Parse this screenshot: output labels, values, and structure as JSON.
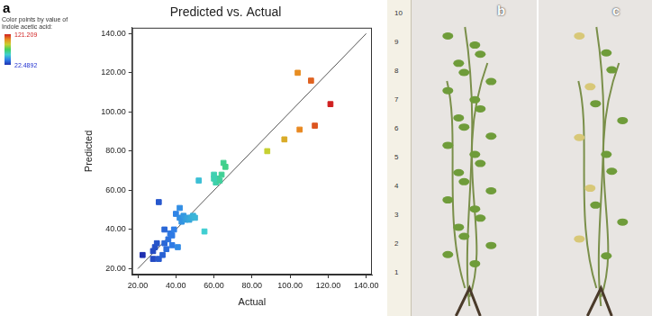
{
  "chart_data": {
    "type": "scatter",
    "panel": "a",
    "title": "Predicted vs. Actual",
    "x_label": "Actual",
    "y_label": "Predicted",
    "marker": "square",
    "grid": false,
    "colorbar": {
      "title": [
        "Color points by value of",
        "Indole acetic acid:"
      ],
      "min": 22.4892,
      "max": 121.209,
      "colors": [
        "#1f2fb0",
        "#2f7fe8",
        "#3fd0d0",
        "#40d060",
        "#c8d030",
        "#e88a20",
        "#d02020"
      ]
    },
    "x": [
      22.4892,
      28,
      28,
      29,
      30,
      31,
      31,
      33,
      34,
      34,
      35,
      36,
      37,
      38,
      39,
      38,
      40,
      41,
      42,
      42,
      43,
      44,
      45,
      46,
      47,
      48,
      49,
      50,
      52,
      55,
      60,
      61,
      62,
      63,
      64,
      65,
      66,
      60,
      88,
      97,
      105,
      104,
      111,
      113,
      121.209
    ],
    "values": [
      27,
      29,
      25,
      31,
      33,
      25,
      54,
      27,
      33,
      40,
      30,
      35,
      38,
      37,
      40,
      32,
      48,
      31,
      51,
      46,
      44,
      47,
      45,
      46,
      45,
      46,
      47,
      46,
      65,
      39,
      68,
      64,
      66,
      65,
      68,
      74,
      72,
      66,
      80,
      86,
      91,
      120,
      116,
      93,
      104
    ],
    "reference_line": {
      "x": [
        20,
        140
      ],
      "values": [
        20,
        140
      ]
    },
    "xlim": [
      17,
      143
    ],
    "ylim": [
      17,
      143
    ],
    "xticks": [
      {
        "value": 20,
        "label": "20.00"
      },
      {
        "value": 40,
        "label": "40.00"
      },
      {
        "value": 60,
        "label": "60.00"
      },
      {
        "value": 80,
        "label": "80.00"
      },
      {
        "value": 100,
        "label": "100.00"
      },
      {
        "value": 120,
        "label": "120.00"
      },
      {
        "value": 140,
        "label": "140.00"
      }
    ],
    "yticks": [
      {
        "value": 20,
        "label": "20.00"
      },
      {
        "value": 40,
        "label": "40.00"
      },
      {
        "value": 60,
        "label": "60.00"
      },
      {
        "value": 80,
        "label": "80.00"
      },
      {
        "value": 100,
        "label": "100.00"
      },
      {
        "value": 120,
        "label": "120.00"
      },
      {
        "value": 140,
        "label": "140.00"
      }
    ]
  },
  "photos": [
    {
      "label": "b",
      "ruler": [
        10,
        9,
        8,
        7,
        6,
        5,
        4,
        3,
        2,
        1
      ]
    },
    {
      "label": "c"
    }
  ]
}
